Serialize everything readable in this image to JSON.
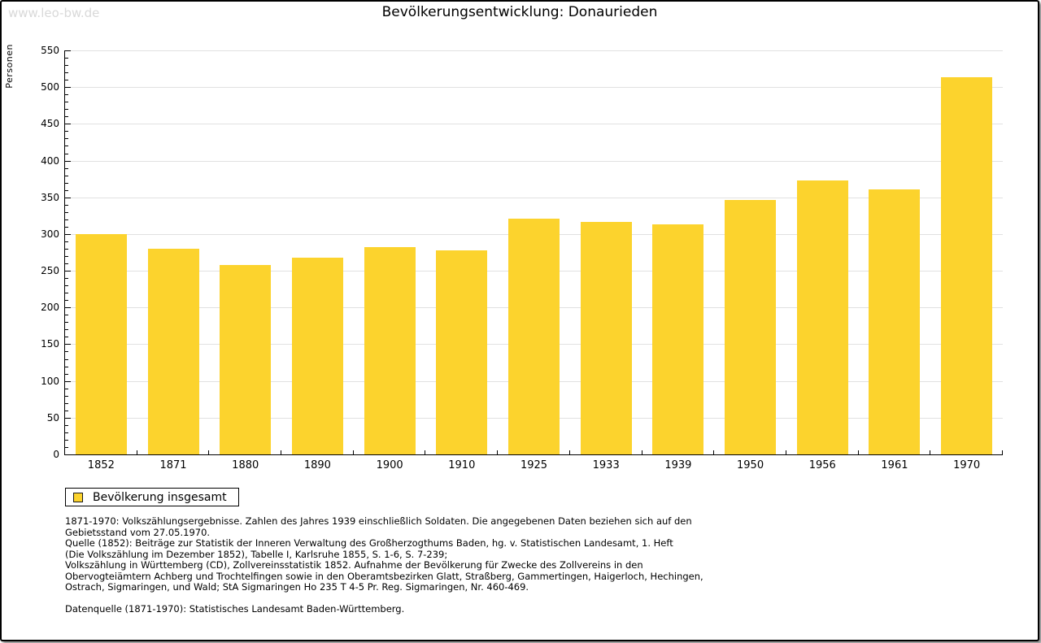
{
  "watermark": "www.leo-bw.de",
  "header": {
    "title": "Bevölkerungsentwicklung: Donaurieden"
  },
  "colors": {
    "bar_fill": "#fcd32d",
    "gridline": "#e1e1e1",
    "axis": "#000000",
    "watermark": "#d9d9d9"
  },
  "chart_data": {
    "type": "bar",
    "title": "Bevölkerungsentwicklung: Donaurieden",
    "series_name": "Bevölkerung insgesamt",
    "categories": [
      "1852",
      "1871",
      "1880",
      "1890",
      "1900",
      "1910",
      "1925",
      "1933",
      "1939",
      "1950",
      "1956",
      "1961",
      "1970"
    ],
    "values": [
      300,
      280,
      258,
      268,
      282,
      278,
      321,
      317,
      313,
      346,
      373,
      361,
      513
    ],
    "xlabel": "",
    "ylabel": "Personen",
    "ylim": [
      0,
      550
    ],
    "ytick_step": 50,
    "yminor_step": 10,
    "grid": "horizontal-major",
    "legend_position": "bottom-left",
    "bar_color": "#fcd32d"
  },
  "legend": {
    "label": "Bevölkerung insgesamt"
  },
  "footnotes": {
    "source_lines": [
      "1871-1970: Volkszählungsergebnisse. Zahlen des Jahres 1939 einschließlich Soldaten. Die angegebenen Daten beziehen sich auf den",
      "Gebietsstand vom 27.05.1970.",
      "Quelle (1852): Beiträge zur Statistik der Inneren Verwaltung des Großherzogthums Baden, hg. v. Statistischen Landesamt, 1. Heft",
      "(Die Volkszählung im Dezember 1852), Tabelle I, Karlsruhe 1855, S. 1-6, S. 7-239;",
      "Volkszählung in Württemberg (CD), Zollvereinsstatistik 1852. Aufnahme der Bevölkerung für Zwecke des Zollvereins in den",
      "Obervogteiämtern Achberg und Trochtelfingen sowie in den Oberamtsbezirken Glatt, Straßberg, Gammertingen, Haigerloch, Hechingen,",
      "Ostrach, Sigmaringen, und Wald; StA Sigmaringen Ho 235 T 4-5 Pr. Reg. Sigmaringen, Nr. 460-469."
    ],
    "datasource": "Datenquelle (1871-1970): Statistisches Landesamt Baden-Württemberg."
  }
}
